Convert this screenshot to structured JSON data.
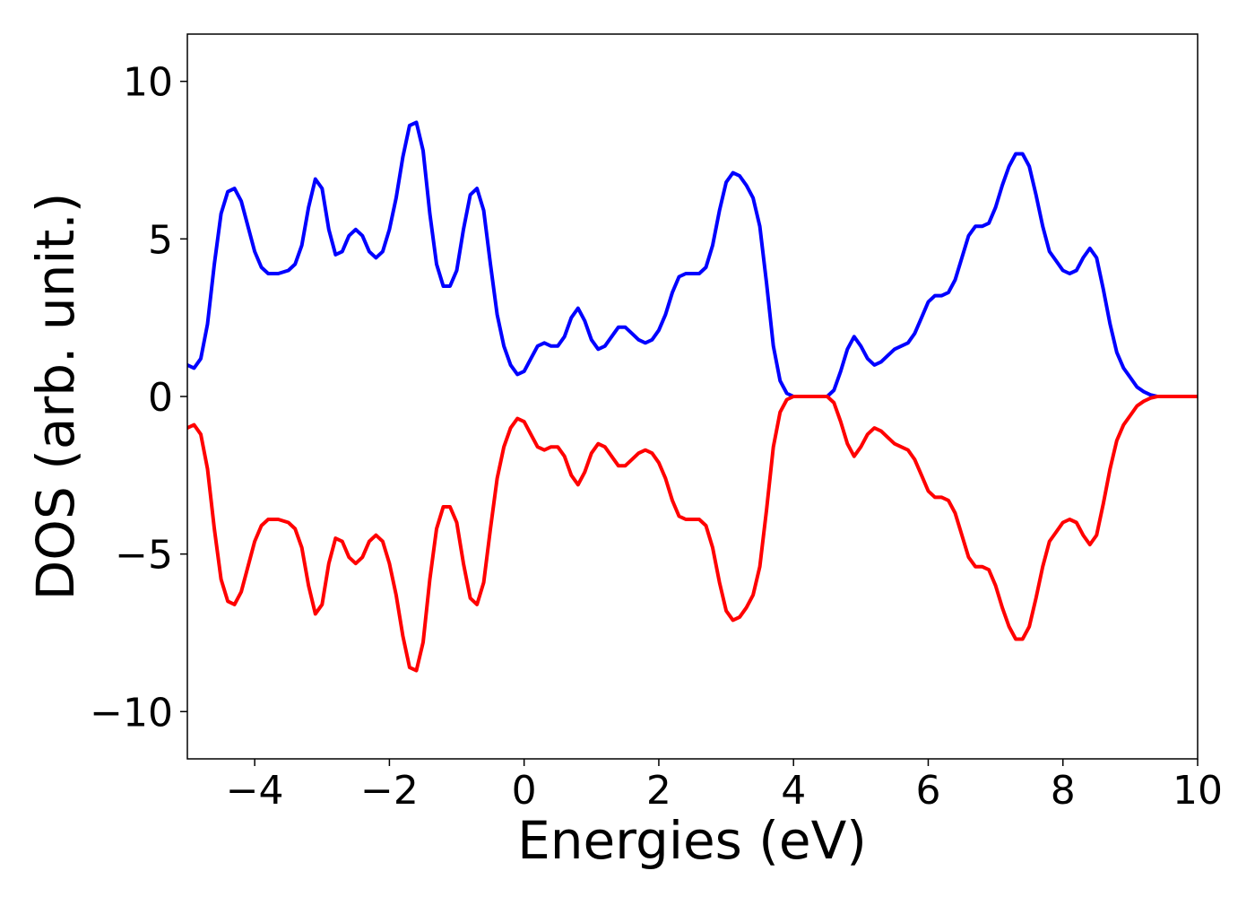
{
  "chart_data": {
    "type": "line",
    "title": "",
    "xlabel": "Energies (eV)",
    "ylabel": "DOS (arb. unit.)",
    "xlim": [
      -5,
      10
    ],
    "ylim": [
      -11.5,
      11.5
    ],
    "xticks": [
      -4,
      -2,
      0,
      2,
      4,
      6,
      8,
      10
    ],
    "xtick_labels": [
      "−4",
      "−2",
      "0",
      "2",
      "4",
      "6",
      "8",
      "10"
    ],
    "yticks": [
      -10,
      -5,
      0,
      5,
      10
    ],
    "ytick_labels": [
      "−10",
      "−5",
      "0",
      "5",
      "10"
    ],
    "grid": false,
    "legend": "none",
    "series": [
      {
        "color": "#0000ff",
        "points": [
          [
            -5.0,
            1.0
          ],
          [
            -4.9,
            0.9
          ],
          [
            -4.8,
            1.2
          ],
          [
            -4.7,
            2.3
          ],
          [
            -4.6,
            4.2
          ],
          [
            -4.5,
            5.8
          ],
          [
            -4.4,
            6.5
          ],
          [
            -4.3,
            6.6
          ],
          [
            -4.2,
            6.2
          ],
          [
            -4.1,
            5.4
          ],
          [
            -4.0,
            4.6
          ],
          [
            -3.9,
            4.1
          ],
          [
            -3.8,
            3.9
          ],
          [
            -3.65,
            3.9
          ],
          [
            -3.5,
            4.0
          ],
          [
            -3.4,
            4.2
          ],
          [
            -3.3,
            4.8
          ],
          [
            -3.2,
            6.0
          ],
          [
            -3.1,
            6.9
          ],
          [
            -3.0,
            6.6
          ],
          [
            -2.9,
            5.3
          ],
          [
            -2.8,
            4.5
          ],
          [
            -2.7,
            4.6
          ],
          [
            -2.6,
            5.1
          ],
          [
            -2.5,
            5.3
          ],
          [
            -2.4,
            5.1
          ],
          [
            -2.3,
            4.6
          ],
          [
            -2.2,
            4.4
          ],
          [
            -2.1,
            4.6
          ],
          [
            -2.0,
            5.3
          ],
          [
            -1.9,
            6.3
          ],
          [
            -1.8,
            7.6
          ],
          [
            -1.7,
            8.6
          ],
          [
            -1.6,
            8.7
          ],
          [
            -1.5,
            7.8
          ],
          [
            -1.4,
            5.8
          ],
          [
            -1.3,
            4.2
          ],
          [
            -1.2,
            3.5
          ],
          [
            -1.1,
            3.5
          ],
          [
            -1.0,
            4.0
          ],
          [
            -0.9,
            5.3
          ],
          [
            -0.8,
            6.4
          ],
          [
            -0.7,
            6.6
          ],
          [
            -0.6,
            5.9
          ],
          [
            -0.5,
            4.2
          ],
          [
            -0.4,
            2.6
          ],
          [
            -0.3,
            1.6
          ],
          [
            -0.2,
            1.0
          ],
          [
            -0.1,
            0.7
          ],
          [
            0.0,
            0.8
          ],
          [
            0.1,
            1.2
          ],
          [
            0.2,
            1.6
          ],
          [
            0.3,
            1.7
          ],
          [
            0.4,
            1.6
          ],
          [
            0.5,
            1.6
          ],
          [
            0.6,
            1.9
          ],
          [
            0.7,
            2.5
          ],
          [
            0.8,
            2.8
          ],
          [
            0.9,
            2.4
          ],
          [
            1.0,
            1.8
          ],
          [
            1.1,
            1.5
          ],
          [
            1.2,
            1.6
          ],
          [
            1.3,
            1.9
          ],
          [
            1.4,
            2.2
          ],
          [
            1.5,
            2.2
          ],
          [
            1.6,
            2.0
          ],
          [
            1.7,
            1.8
          ],
          [
            1.8,
            1.7
          ],
          [
            1.9,
            1.8
          ],
          [
            2.0,
            2.1
          ],
          [
            2.1,
            2.6
          ],
          [
            2.2,
            3.3
          ],
          [
            2.3,
            3.8
          ],
          [
            2.4,
            3.9
          ],
          [
            2.5,
            3.9
          ],
          [
            2.6,
            3.9
          ],
          [
            2.7,
            4.1
          ],
          [
            2.8,
            4.8
          ],
          [
            2.9,
            5.9
          ],
          [
            3.0,
            6.8
          ],
          [
            3.1,
            7.1
          ],
          [
            3.2,
            7.0
          ],
          [
            3.3,
            6.7
          ],
          [
            3.4,
            6.3
          ],
          [
            3.5,
            5.4
          ],
          [
            3.6,
            3.6
          ],
          [
            3.7,
            1.6
          ],
          [
            3.8,
            0.5
          ],
          [
            3.9,
            0.1
          ],
          [
            4.0,
            0.0
          ],
          [
            4.5,
            0.0
          ],
          [
            4.6,
            0.2
          ],
          [
            4.7,
            0.8
          ],
          [
            4.8,
            1.5
          ],
          [
            4.9,
            1.9
          ],
          [
            5.0,
            1.6
          ],
          [
            5.1,
            1.2
          ],
          [
            5.2,
            1.0
          ],
          [
            5.3,
            1.1
          ],
          [
            5.4,
            1.3
          ],
          [
            5.5,
            1.5
          ],
          [
            5.6,
            1.6
          ],
          [
            5.7,
            1.7
          ],
          [
            5.8,
            2.0
          ],
          [
            5.9,
            2.5
          ],
          [
            6.0,
            3.0
          ],
          [
            6.1,
            3.2
          ],
          [
            6.2,
            3.2
          ],
          [
            6.3,
            3.3
          ],
          [
            6.4,
            3.7
          ],
          [
            6.5,
            4.4
          ],
          [
            6.6,
            5.1
          ],
          [
            6.7,
            5.4
          ],
          [
            6.8,
            5.4
          ],
          [
            6.9,
            5.5
          ],
          [
            7.0,
            6.0
          ],
          [
            7.1,
            6.7
          ],
          [
            7.2,
            7.3
          ],
          [
            7.3,
            7.7
          ],
          [
            7.4,
            7.7
          ],
          [
            7.5,
            7.3
          ],
          [
            7.6,
            6.4
          ],
          [
            7.7,
            5.4
          ],
          [
            7.8,
            4.6
          ],
          [
            7.9,
            4.3
          ],
          [
            8.0,
            4.0
          ],
          [
            8.1,
            3.9
          ],
          [
            8.2,
            4.0
          ],
          [
            8.3,
            4.4
          ],
          [
            8.4,
            4.7
          ],
          [
            8.5,
            4.4
          ],
          [
            8.6,
            3.4
          ],
          [
            8.7,
            2.3
          ],
          [
            8.8,
            1.4
          ],
          [
            8.9,
            0.9
          ],
          [
            9.0,
            0.6
          ],
          [
            9.1,
            0.3
          ],
          [
            9.2,
            0.15
          ],
          [
            9.3,
            0.05
          ],
          [
            9.4,
            0.0
          ],
          [
            10.0,
            0.0
          ]
        ]
      },
      {
        "color": "#ff0000",
        "points": [
          [
            -5.0,
            -1.0
          ],
          [
            -4.9,
            -0.9
          ],
          [
            -4.8,
            -1.2
          ],
          [
            -4.7,
            -2.3
          ],
          [
            -4.6,
            -4.2
          ],
          [
            -4.5,
            -5.8
          ],
          [
            -4.4,
            -6.5
          ],
          [
            -4.3,
            -6.6
          ],
          [
            -4.2,
            -6.2
          ],
          [
            -4.1,
            -5.4
          ],
          [
            -4.0,
            -4.6
          ],
          [
            -3.9,
            -4.1
          ],
          [
            -3.8,
            -3.9
          ],
          [
            -3.65,
            -3.9
          ],
          [
            -3.5,
            -4.0
          ],
          [
            -3.4,
            -4.2
          ],
          [
            -3.3,
            -4.8
          ],
          [
            -3.2,
            -6.0
          ],
          [
            -3.1,
            -6.9
          ],
          [
            -3.0,
            -6.6
          ],
          [
            -2.9,
            -5.3
          ],
          [
            -2.8,
            -4.5
          ],
          [
            -2.7,
            -4.6
          ],
          [
            -2.6,
            -5.1
          ],
          [
            -2.5,
            -5.3
          ],
          [
            -2.4,
            -5.1
          ],
          [
            -2.3,
            -4.6
          ],
          [
            -2.2,
            -4.4
          ],
          [
            -2.1,
            -4.6
          ],
          [
            -2.0,
            -5.3
          ],
          [
            -1.9,
            -6.3
          ],
          [
            -1.8,
            -7.6
          ],
          [
            -1.7,
            -8.6
          ],
          [
            -1.6,
            -8.7
          ],
          [
            -1.5,
            -7.8
          ],
          [
            -1.4,
            -5.8
          ],
          [
            -1.3,
            -4.2
          ],
          [
            -1.2,
            -3.5
          ],
          [
            -1.1,
            -3.5
          ],
          [
            -1.0,
            -4.0
          ],
          [
            -0.9,
            -5.3
          ],
          [
            -0.8,
            -6.4
          ],
          [
            -0.7,
            -6.6
          ],
          [
            -0.6,
            -5.9
          ],
          [
            -0.5,
            -4.2
          ],
          [
            -0.4,
            -2.6
          ],
          [
            -0.3,
            -1.6
          ],
          [
            -0.2,
            -1.0
          ],
          [
            -0.1,
            -0.7
          ],
          [
            0.0,
            -0.8
          ],
          [
            0.1,
            -1.2
          ],
          [
            0.2,
            -1.6
          ],
          [
            0.3,
            -1.7
          ],
          [
            0.4,
            -1.6
          ],
          [
            0.5,
            -1.6
          ],
          [
            0.6,
            -1.9
          ],
          [
            0.7,
            -2.5
          ],
          [
            0.8,
            -2.8
          ],
          [
            0.9,
            -2.4
          ],
          [
            1.0,
            -1.8
          ],
          [
            1.1,
            -1.5
          ],
          [
            1.2,
            -1.6
          ],
          [
            1.3,
            -1.9
          ],
          [
            1.4,
            -2.2
          ],
          [
            1.5,
            -2.2
          ],
          [
            1.6,
            -2.0
          ],
          [
            1.7,
            -1.8
          ],
          [
            1.8,
            -1.7
          ],
          [
            1.9,
            -1.8
          ],
          [
            2.0,
            -2.1
          ],
          [
            2.1,
            -2.6
          ],
          [
            2.2,
            -3.3
          ],
          [
            2.3,
            -3.8
          ],
          [
            2.4,
            -3.9
          ],
          [
            2.5,
            -3.9
          ],
          [
            2.6,
            -3.9
          ],
          [
            2.7,
            -4.1
          ],
          [
            2.8,
            -4.8
          ],
          [
            2.9,
            -5.9
          ],
          [
            3.0,
            -6.8
          ],
          [
            3.1,
            -7.1
          ],
          [
            3.2,
            -7.0
          ],
          [
            3.3,
            -6.7
          ],
          [
            3.4,
            -6.3
          ],
          [
            3.5,
            -5.4
          ],
          [
            3.6,
            -3.6
          ],
          [
            3.7,
            -1.6
          ],
          [
            3.8,
            -0.5
          ],
          [
            3.9,
            -0.1
          ],
          [
            4.0,
            0.0
          ],
          [
            4.5,
            0.0
          ],
          [
            4.6,
            -0.2
          ],
          [
            4.7,
            -0.8
          ],
          [
            4.8,
            -1.5
          ],
          [
            4.9,
            -1.9
          ],
          [
            5.0,
            -1.6
          ],
          [
            5.1,
            -1.2
          ],
          [
            5.2,
            -1.0
          ],
          [
            5.3,
            -1.1
          ],
          [
            5.4,
            -1.3
          ],
          [
            5.5,
            -1.5
          ],
          [
            5.6,
            -1.6
          ],
          [
            5.7,
            -1.7
          ],
          [
            5.8,
            -2.0
          ],
          [
            5.9,
            -2.5
          ],
          [
            6.0,
            -3.0
          ],
          [
            6.1,
            -3.2
          ],
          [
            6.2,
            -3.2
          ],
          [
            6.3,
            -3.3
          ],
          [
            6.4,
            -3.7
          ],
          [
            6.5,
            -4.4
          ],
          [
            6.6,
            -5.1
          ],
          [
            6.7,
            -5.4
          ],
          [
            6.8,
            -5.4
          ],
          [
            6.9,
            -5.5
          ],
          [
            7.0,
            -6.0
          ],
          [
            7.1,
            -6.7
          ],
          [
            7.2,
            -7.3
          ],
          [
            7.3,
            -7.7
          ],
          [
            7.4,
            -7.7
          ],
          [
            7.5,
            -7.3
          ],
          [
            7.6,
            -6.4
          ],
          [
            7.7,
            -5.4
          ],
          [
            7.8,
            -4.6
          ],
          [
            7.9,
            -4.3
          ],
          [
            8.0,
            -4.0
          ],
          [
            8.1,
            -3.9
          ],
          [
            8.2,
            -4.0
          ],
          [
            8.3,
            -4.4
          ],
          [
            8.4,
            -4.7
          ],
          [
            8.5,
            -4.4
          ],
          [
            8.6,
            -3.4
          ],
          [
            8.7,
            -2.3
          ],
          [
            8.8,
            -1.4
          ],
          [
            8.9,
            -0.9
          ],
          [
            9.0,
            -0.6
          ],
          [
            9.1,
            -0.3
          ],
          [
            9.2,
            -0.15
          ],
          [
            9.3,
            -0.05
          ],
          [
            9.4,
            0.0
          ],
          [
            10.0,
            0.0
          ]
        ]
      }
    ]
  }
}
